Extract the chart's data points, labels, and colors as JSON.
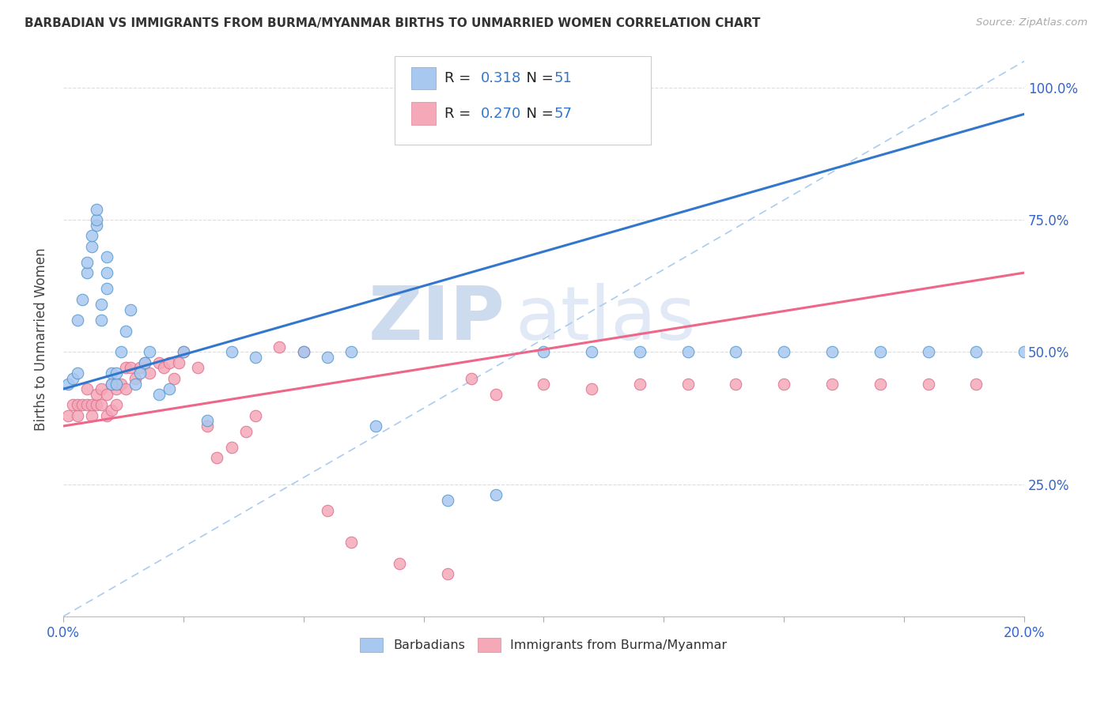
{
  "title": "BARBADIAN VS IMMIGRANTS FROM BURMA/MYANMAR BIRTHS TO UNMARRIED WOMEN CORRELATION CHART",
  "source": "Source: ZipAtlas.com",
  "ylabel": "Births to Unmarried Women",
  "legend_label1": "Barbadians",
  "legend_label2": "Immigrants from Burma/Myanmar",
  "R1": "0.318",
  "N1": "51",
  "R2": "0.270",
  "N2": "57",
  "color_blue": "#A8C8F0",
  "color_pink": "#F4A8B8",
  "color_blue_line": "#3377CC",
  "color_pink_line": "#EE6688",
  "color_diag": "#AACCEE",
  "color_rn_blue": "#3377CC",
  "watermark_zip": "ZIP",
  "watermark_atlas": "atlas",
  "blue_scatter_x": [
    0.001,
    0.002,
    0.003,
    0.003,
    0.004,
    0.005,
    0.005,
    0.006,
    0.006,
    0.007,
    0.007,
    0.007,
    0.008,
    0.008,
    0.009,
    0.009,
    0.009,
    0.01,
    0.01,
    0.011,
    0.011,
    0.012,
    0.013,
    0.014,
    0.015,
    0.016,
    0.017,
    0.018,
    0.02,
    0.022,
    0.025,
    0.03,
    0.035,
    0.04,
    0.05,
    0.055,
    0.06,
    0.065,
    0.08,
    0.09,
    0.1,
    0.11,
    0.12,
    0.13,
    0.14,
    0.15,
    0.16,
    0.17,
    0.18,
    0.19,
    0.2
  ],
  "blue_scatter_y": [
    0.44,
    0.45,
    0.46,
    0.56,
    0.6,
    0.65,
    0.67,
    0.7,
    0.72,
    0.74,
    0.75,
    0.77,
    0.56,
    0.59,
    0.62,
    0.65,
    0.68,
    0.44,
    0.46,
    0.44,
    0.46,
    0.5,
    0.54,
    0.58,
    0.44,
    0.46,
    0.48,
    0.5,
    0.42,
    0.43,
    0.5,
    0.37,
    0.5,
    0.49,
    0.5,
    0.49,
    0.5,
    0.36,
    0.22,
    0.23,
    0.5,
    0.5,
    0.5,
    0.5,
    0.5,
    0.5,
    0.5,
    0.5,
    0.5,
    0.5,
    0.5
  ],
  "pink_scatter_x": [
    0.001,
    0.002,
    0.003,
    0.003,
    0.004,
    0.005,
    0.005,
    0.006,
    0.006,
    0.007,
    0.007,
    0.008,
    0.008,
    0.009,
    0.009,
    0.01,
    0.01,
    0.011,
    0.011,
    0.012,
    0.013,
    0.013,
    0.014,
    0.015,
    0.016,
    0.017,
    0.018,
    0.02,
    0.021,
    0.022,
    0.023,
    0.024,
    0.025,
    0.028,
    0.03,
    0.032,
    0.035,
    0.038,
    0.04,
    0.045,
    0.05,
    0.055,
    0.06,
    0.07,
    0.08,
    0.085,
    0.09,
    0.1,
    0.11,
    0.12,
    0.13,
    0.14,
    0.15,
    0.16,
    0.17,
    0.18,
    0.19
  ],
  "pink_scatter_y": [
    0.38,
    0.4,
    0.38,
    0.4,
    0.4,
    0.4,
    0.43,
    0.38,
    0.4,
    0.4,
    0.42,
    0.4,
    0.43,
    0.38,
    0.42,
    0.39,
    0.44,
    0.4,
    0.43,
    0.44,
    0.43,
    0.47,
    0.47,
    0.45,
    0.47,
    0.48,
    0.46,
    0.48,
    0.47,
    0.48,
    0.45,
    0.48,
    0.5,
    0.47,
    0.36,
    0.3,
    0.32,
    0.35,
    0.38,
    0.51,
    0.5,
    0.2,
    0.14,
    0.1,
    0.08,
    0.45,
    0.42,
    0.44,
    0.43,
    0.44,
    0.44,
    0.44,
    0.44,
    0.44,
    0.44,
    0.44,
    0.44
  ],
  "blue_line_x0": 0.0,
  "blue_line_y0": 0.43,
  "blue_line_x1": 0.2,
  "blue_line_y1": 0.95,
  "pink_line_x0": 0.0,
  "pink_line_y0": 0.36,
  "pink_line_x1": 0.2,
  "pink_line_y1": 0.65,
  "xlim": [
    0.0,
    0.2
  ],
  "ylim": [
    0.0,
    1.05
  ],
  "xticks": [
    0.0,
    0.025,
    0.05,
    0.075,
    0.1,
    0.125,
    0.15,
    0.175,
    0.2
  ],
  "yticks": [
    0.25,
    0.5,
    0.75,
    1.0
  ]
}
